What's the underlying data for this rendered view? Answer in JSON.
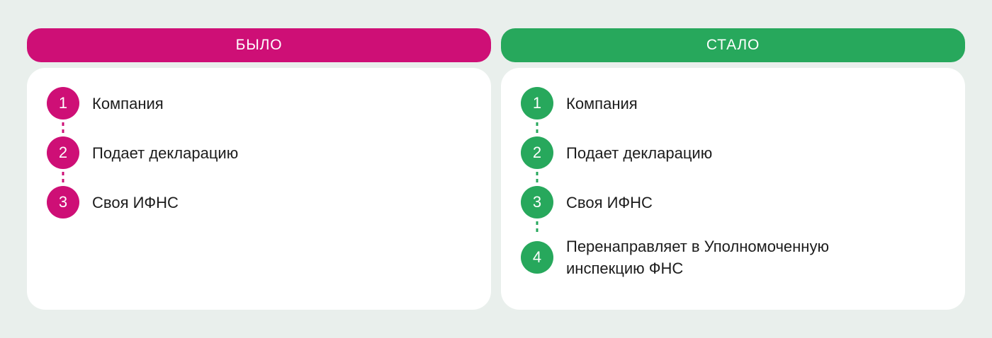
{
  "colors": {
    "background": "#E9EFEC",
    "card_background": "#FFFFFF",
    "before_accent": "#CE0F76",
    "after_accent": "#27A85C",
    "header_text": "#FFFFFF",
    "step_text": "#1C1C1C"
  },
  "panels": [
    {
      "id": "before",
      "header": "БЫЛО",
      "accent": "#CE0F76",
      "steps": [
        {
          "number": "1",
          "label": "Компания"
        },
        {
          "number": "2",
          "label": "Подает декларацию"
        },
        {
          "number": "3",
          "label": "Своя ИФНС"
        }
      ]
    },
    {
      "id": "after",
      "header": "СТАЛО",
      "accent": "#27A85C",
      "steps": [
        {
          "number": "1",
          "label": "Компания"
        },
        {
          "number": "2",
          "label": "Подает декларацию"
        },
        {
          "number": "3",
          "label": "Своя ИФНС"
        },
        {
          "number": "4",
          "label": "Перенаправляет в Уполномоченную\nинспекцию ФНС"
        }
      ]
    }
  ]
}
